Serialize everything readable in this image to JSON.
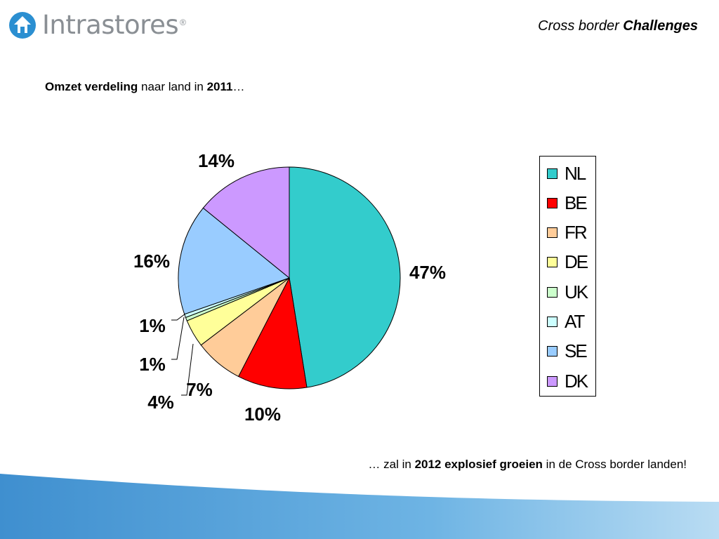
{
  "header": {
    "brand": "Intrastores",
    "brand_mark": "®",
    "section_prefix": "Cross border ",
    "section_bold": "Challenges"
  },
  "subtitle": {
    "bold1": "Omzet verdeling",
    "mid": " naar land in ",
    "bold2": "2011",
    "tail": "…"
  },
  "chart_data": {
    "type": "pie",
    "title": "",
    "start_angle": "12 o'clock, clockwise",
    "slices": [
      {
        "label": "NL",
        "value": 47,
        "data_label": "47%",
        "color": "#33cccc"
      },
      {
        "label": "BE",
        "value": 10,
        "data_label": "10%",
        "color": "#ff0000"
      },
      {
        "label": "FR",
        "value": 7,
        "data_label": "7%",
        "color": "#ffcc99"
      },
      {
        "label": "DE",
        "value": 4,
        "data_label": "4%",
        "color": "#ffff99"
      },
      {
        "label": "UK",
        "value": 0.5,
        "data_label": "1%",
        "color": "#ccffcc"
      },
      {
        "label": "AT",
        "value": 0.5,
        "data_label": "1%",
        "color": "#ccffff"
      },
      {
        "label": "SE",
        "value": 16,
        "data_label": "16%",
        "color": "#99ccff"
      },
      {
        "label": "DK",
        "value": 14,
        "data_label": "14%",
        "color": "#cc99ff"
      }
    ],
    "legend_position": "right"
  },
  "footer": {
    "lead": "… zal in ",
    "bold": "2012 explosief groeien",
    "tail": " in de Cross border landen!"
  },
  "colors": {
    "brand_blue": "#2b8fd1",
    "brand_gray": "#8a8f94",
    "wave_blue": "#4a9fd8"
  }
}
